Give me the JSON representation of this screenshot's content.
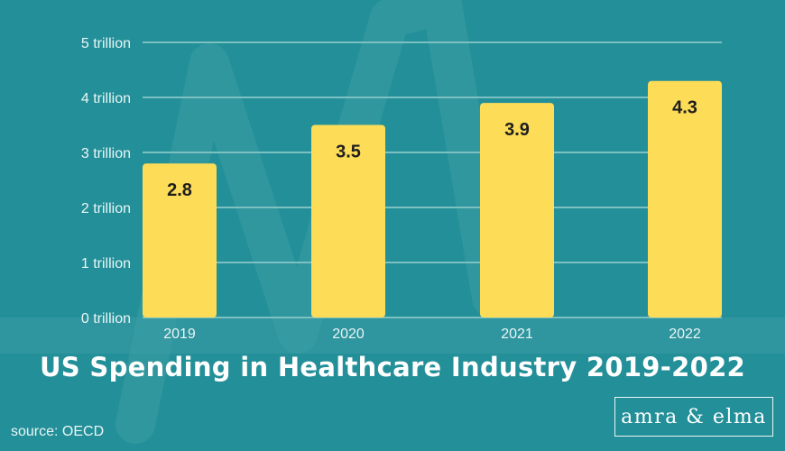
{
  "colors": {
    "background": "#238f98",
    "bar": "#fddc57",
    "gridline": "#7cc0c2",
    "decoration": "#3d9ea6"
  },
  "chart_data": {
    "type": "bar",
    "categories": [
      "2019",
      "2020",
      "2021",
      "2022"
    ],
    "values": [
      2.8,
      3.5,
      3.9,
      4.3
    ],
    "value_labels": [
      "2.8",
      "3.5",
      "3.9",
      "4.3"
    ],
    "title": "US Spending in Healthcare Industry 2019-2022",
    "xlabel": "",
    "ylabel": "",
    "ylim": [
      0,
      5
    ],
    "yticks": [
      0,
      1,
      2,
      3,
      4,
      5
    ],
    "ytick_labels": [
      "0 trillion",
      "1 trillion",
      "2 trillion",
      "3 trillion",
      "4 trillion",
      "5 trillion"
    ],
    "grid": true,
    "legend": "none"
  },
  "source": "source: OECD",
  "logo": "amra & elma"
}
